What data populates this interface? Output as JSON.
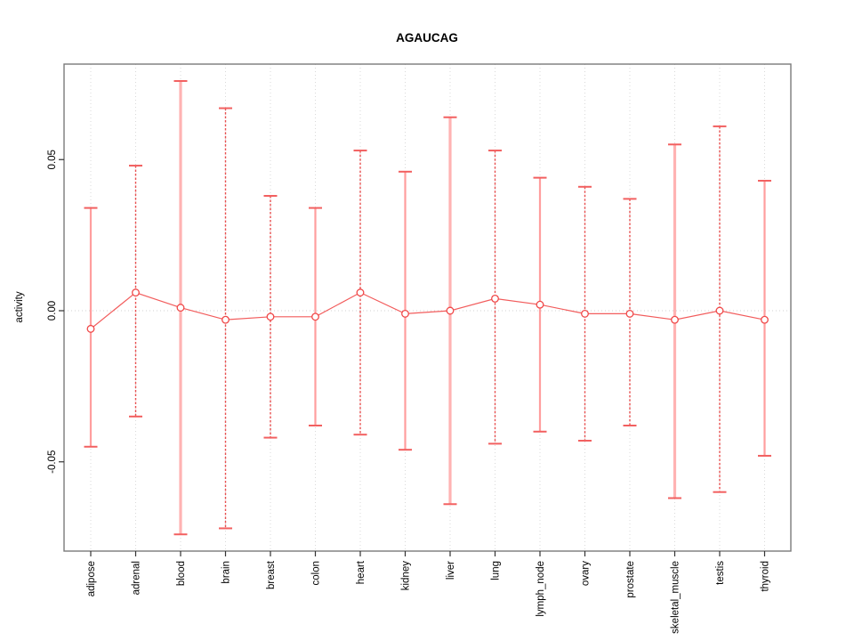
{
  "title": "AGAUCAG",
  "chart_data": {
    "type": "scatter",
    "title": "AGAUCAG",
    "xlabel": "",
    "ylabel": "activity",
    "categories": [
      "adipose",
      "adrenal",
      "blood",
      "brain",
      "breast",
      "colon",
      "heart",
      "kidney",
      "liver",
      "lung",
      "lymph_node",
      "ovary",
      "prostate",
      "skeletal_muscle",
      "testis",
      "thyroid"
    ],
    "series": [
      {
        "name": "activity mean",
        "values": [
          -0.006,
          0.006,
          0.001,
          -0.003,
          -0.002,
          -0.002,
          0.006,
          -0.001,
          0.0,
          0.004,
          0.002,
          -0.001,
          -0.001,
          -0.003,
          0.0,
          -0.003
        ],
        "error_upper": [
          0.034,
          0.048,
          0.076,
          0.067,
          0.038,
          0.034,
          0.053,
          0.046,
          0.064,
          0.053,
          0.044,
          0.041,
          0.037,
          0.055,
          0.061,
          0.043
        ],
        "error_lower": [
          -0.045,
          -0.035,
          -0.074,
          -0.072,
          -0.042,
          -0.038,
          -0.041,
          -0.046,
          -0.064,
          -0.044,
          -0.04,
          -0.043,
          -0.038,
          -0.062,
          -0.06,
          -0.048
        ]
      }
    ],
    "bar_styles": [
      "solid",
      "dashed",
      "wide",
      "dashed",
      "dashed",
      "solid",
      "dashed",
      "solid",
      "wide",
      "dashed",
      "solid",
      "dashed",
      "dashed",
      "wide",
      "dashed",
      "solid"
    ],
    "yticks": [
      -0.05,
      0.0,
      0.05
    ],
    "ytick_labels": [
      "-0.05",
      "0.00",
      "0.05"
    ],
    "ylim": [
      -0.0795,
      0.0816
    ],
    "grid": "vertical dotted gridlines per category, dotted horizontal line at zero",
    "legend": "none",
    "marker": "open-circle",
    "connect_points": true
  },
  "colors": {
    "error_bar_dashed": "#e85050",
    "error_bar_solid": "#ff9e9e",
    "error_bar_wide": "#ffb3b3",
    "error_cap": "#f26060",
    "marker_stroke": "#f04848",
    "connect_line": "#f25c5c",
    "zero_line": "#d0d0d0",
    "gridline": "#d9d9d9",
    "plot_border": "#7a7a7a",
    "axis_tick": "#333333",
    "background": "#ffffff"
  }
}
